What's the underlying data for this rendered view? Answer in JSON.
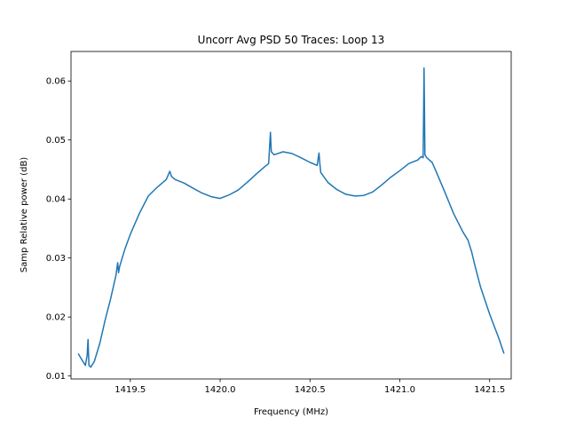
{
  "chart_data": {
    "type": "line",
    "title": "Uncorr Avg PSD 50 Traces: Loop 13",
    "xlabel": "Frequency (MHz)",
    "ylabel": "Samp Relative power (dB)",
    "xlim": [
      1419.17,
      1421.62
    ],
    "ylim": [
      0.0095,
      0.065
    ],
    "xticks": [
      1419.5,
      1420.0,
      1420.5,
      1421.0,
      1421.5
    ],
    "xtick_labels": [
      "1419.5",
      "1420.0",
      "1420.5",
      "1421.0",
      "1421.5"
    ],
    "yticks": [
      0.01,
      0.02,
      0.03,
      0.04,
      0.05,
      0.06
    ],
    "ytick_labels": [
      "0.01",
      "0.02",
      "0.03",
      "0.04",
      "0.05",
      "0.06"
    ],
    "grid": false,
    "colors": {
      "line": "#1f77b4"
    },
    "series": [
      {
        "x": [
          1419.21,
          1419.23,
          1419.25,
          1419.26,
          1419.265,
          1419.27,
          1419.28,
          1419.3,
          1419.33,
          1419.36,
          1419.39,
          1419.42,
          1419.43,
          1419.435,
          1419.44,
          1419.47,
          1419.5,
          1419.55,
          1419.6,
          1419.65,
          1419.7,
          1419.72,
          1419.73,
          1419.75,
          1419.8,
          1419.85,
          1419.9,
          1419.95,
          1420.0,
          1420.05,
          1420.1,
          1420.15,
          1420.2,
          1420.25,
          1420.27,
          1420.28,
          1420.285,
          1420.3,
          1420.35,
          1420.4,
          1420.45,
          1420.5,
          1420.54,
          1420.55,
          1420.555,
          1420.56,
          1420.6,
          1420.65,
          1420.7,
          1420.75,
          1420.8,
          1420.85,
          1420.9,
          1420.95,
          1421.0,
          1421.05,
          1421.1,
          1421.12,
          1421.13,
          1421.135,
          1421.14,
          1421.15,
          1421.18,
          1421.2,
          1421.25,
          1421.3,
          1421.35,
          1421.38,
          1421.4,
          1421.42,
          1421.45,
          1421.5,
          1421.55,
          1421.58
        ],
        "y": [
          0.0138,
          0.0128,
          0.0118,
          0.0135,
          0.0162,
          0.0118,
          0.0115,
          0.0125,
          0.0155,
          0.0195,
          0.023,
          0.027,
          0.0292,
          0.0275,
          0.0285,
          0.0315,
          0.034,
          0.0375,
          0.0405,
          0.042,
          0.0433,
          0.0447,
          0.0438,
          0.0433,
          0.0427,
          0.0418,
          0.041,
          0.0404,
          0.0401,
          0.0407,
          0.0415,
          0.0428,
          0.0442,
          0.0455,
          0.046,
          0.0513,
          0.048,
          0.0475,
          0.048,
          0.0477,
          0.047,
          0.0462,
          0.0457,
          0.0478,
          0.046,
          0.0445,
          0.0428,
          0.0416,
          0.0408,
          0.0405,
          0.0406,
          0.0412,
          0.0424,
          0.0437,
          0.0448,
          0.046,
          0.0466,
          0.0472,
          0.047,
          0.0622,
          0.0475,
          0.047,
          0.0462,
          0.0448,
          0.0412,
          0.0375,
          0.0345,
          0.033,
          0.031,
          0.0285,
          0.025,
          0.0205,
          0.0165,
          0.0138
        ]
      }
    ]
  }
}
